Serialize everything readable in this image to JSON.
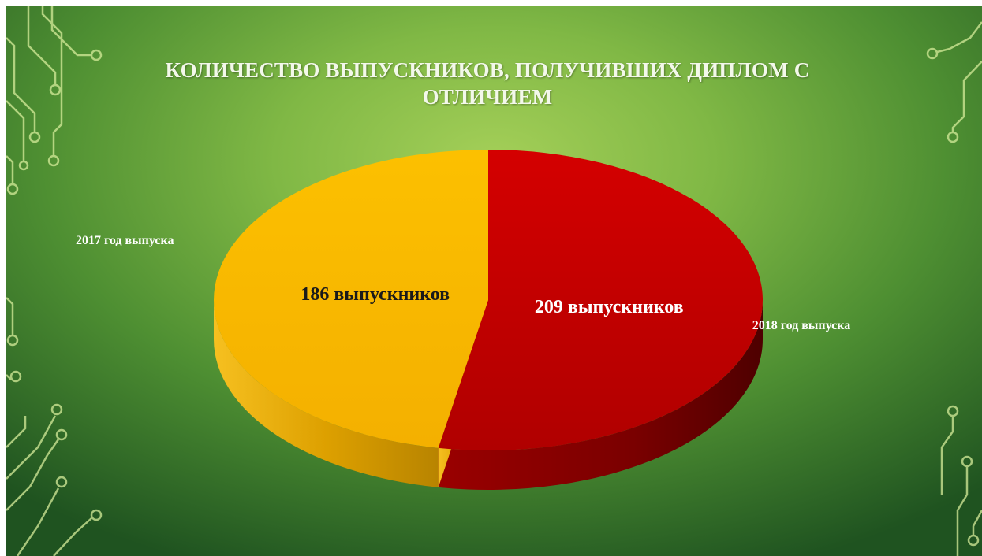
{
  "slide": {
    "title": "КОЛИЧЕСТВО ВЫПУСКНИКОВ, ПОЛУЧИВШИХ ДИПЛОМ С ОТЛИЧИЕМ",
    "background": "#80b845",
    "decoration_icon": "circuit-lines-icon"
  },
  "chart_data": {
    "type": "pie",
    "title": "КОЛИЧЕСТВО ВЫПУСКНИКОВ, ПОЛУЧИВШИХ ДИПЛОМ С ОТЛИЧИЕМ",
    "categories": [
      "2017 год выпуска",
      "2018 год выпуска"
    ],
    "values": [
      186,
      209
    ],
    "data_labels": [
      "186 выпускников",
      "209 выпускников"
    ],
    "colors": [
      "#f9b800",
      "#c00000"
    ],
    "label_colors": [
      "#1a1a1a",
      "#ffffff"
    ],
    "style": "3d"
  }
}
